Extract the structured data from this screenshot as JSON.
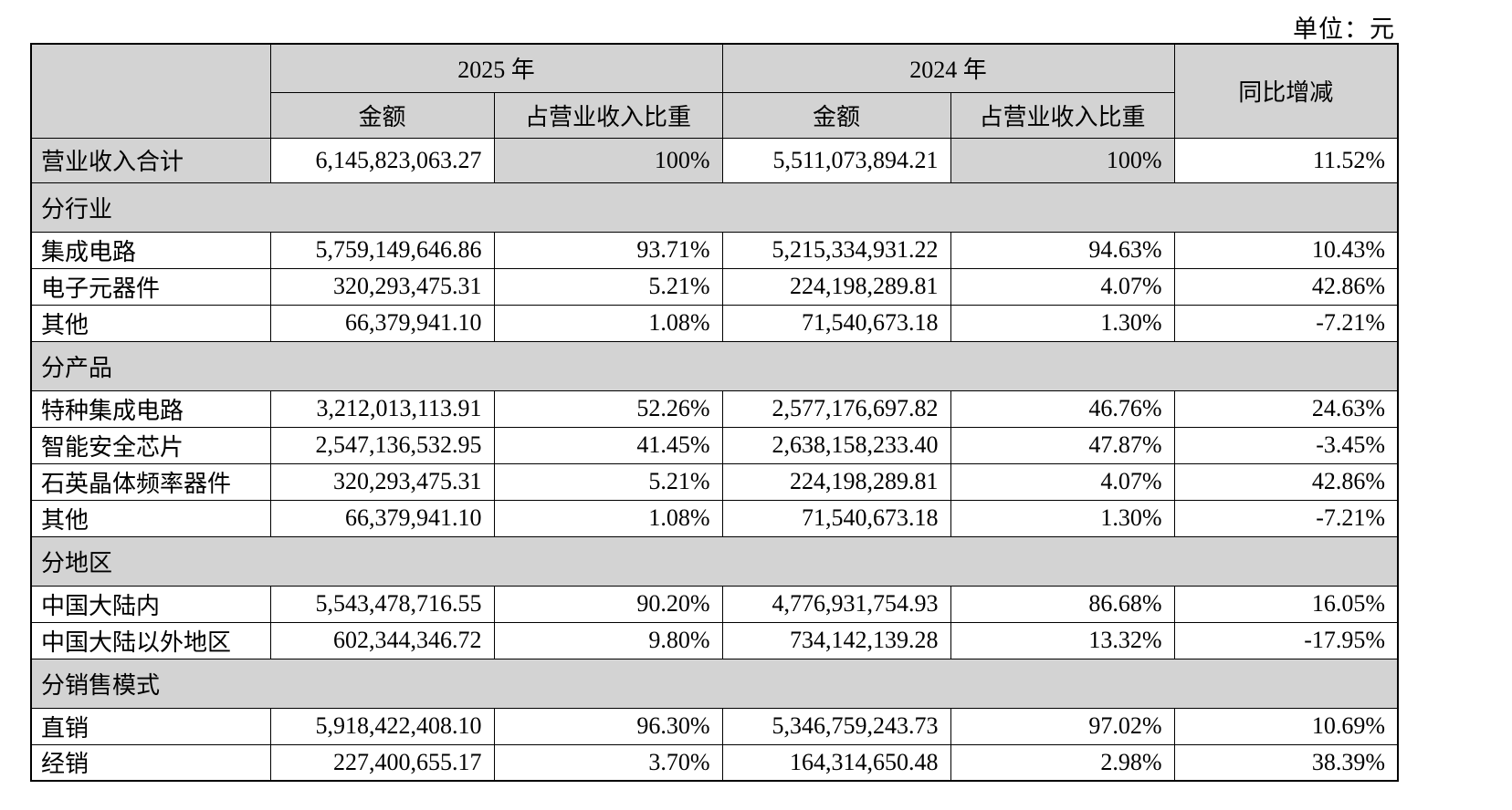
{
  "unit_label": "单位：元",
  "colors": {
    "header_bg": "#d3d3d3",
    "border": "#000000",
    "page_bg": "#ffffff"
  },
  "table": {
    "header": {
      "year_2025": "2025 年",
      "year_2024": "2024 年",
      "amount": "金额",
      "pct": "占营业收入比重",
      "yoy": "同比增减"
    },
    "rows": [
      {
        "type": "total",
        "label": "营业收入合计",
        "y2025_amount": "6,145,823,063.27",
        "y2025_pct": "100%",
        "y2024_amount": "5,511,073,894.21",
        "y2024_pct": "100%",
        "yoy": "11.52%"
      },
      {
        "type": "section",
        "label": "分行业"
      },
      {
        "type": "data",
        "label": "集成电路",
        "y2025_amount": "5,759,149,646.86",
        "y2025_pct": "93.71%",
        "y2024_amount": "5,215,334,931.22",
        "y2024_pct": "94.63%",
        "yoy": "10.43%"
      },
      {
        "type": "data",
        "label": "电子元器件",
        "y2025_amount": "320,293,475.31",
        "y2025_pct": "5.21%",
        "y2024_amount": "224,198,289.81",
        "y2024_pct": "4.07%",
        "yoy": "42.86%"
      },
      {
        "type": "data",
        "label": "其他",
        "y2025_amount": "66,379,941.10",
        "y2025_pct": "1.08%",
        "y2024_amount": "71,540,673.18",
        "y2024_pct": "1.30%",
        "yoy": "-7.21%"
      },
      {
        "type": "section",
        "label": "分产品"
      },
      {
        "type": "data",
        "label": "特种集成电路",
        "y2025_amount": "3,212,013,113.91",
        "y2025_pct": "52.26%",
        "y2024_amount": "2,577,176,697.82",
        "y2024_pct": "46.76%",
        "yoy": "24.63%"
      },
      {
        "type": "data",
        "label": "智能安全芯片",
        "y2025_amount": "2,547,136,532.95",
        "y2025_pct": "41.45%",
        "y2024_amount": "2,638,158,233.40",
        "y2024_pct": "47.87%",
        "yoy": "-3.45%"
      },
      {
        "type": "data",
        "label": "石英晶体频率器件",
        "y2025_amount": "320,293,475.31",
        "y2025_pct": "5.21%",
        "y2024_amount": "224,198,289.81",
        "y2024_pct": "4.07%",
        "yoy": "42.86%"
      },
      {
        "type": "data",
        "label": "其他",
        "y2025_amount": "66,379,941.10",
        "y2025_pct": "1.08%",
        "y2024_amount": "71,540,673.18",
        "y2024_pct": "1.30%",
        "yoy": "-7.21%"
      },
      {
        "type": "section",
        "label": "分地区"
      },
      {
        "type": "data",
        "label": "中国大陆内",
        "y2025_amount": "5,543,478,716.55",
        "y2025_pct": "90.20%",
        "y2024_amount": "4,776,931,754.93",
        "y2024_pct": "86.68%",
        "yoy": "16.05%"
      },
      {
        "type": "data",
        "label": "中国大陆以外地区",
        "y2025_amount": "602,344,346.72",
        "y2025_pct": "9.80%",
        "y2024_amount": "734,142,139.28",
        "y2024_pct": "13.32%",
        "yoy": "-17.95%"
      },
      {
        "type": "section",
        "label": "分销售模式"
      },
      {
        "type": "data",
        "label": "直销",
        "y2025_amount": "5,918,422,408.10",
        "y2025_pct": "96.30%",
        "y2024_amount": "5,346,759,243.73",
        "y2024_pct": "97.02%",
        "yoy": "10.69%"
      },
      {
        "type": "data",
        "label": "经销",
        "y2025_amount": "227,400,655.17",
        "y2025_pct": "3.70%",
        "y2024_amount": "164,314,650.48",
        "y2024_pct": "2.98%",
        "yoy": "38.39%"
      }
    ]
  }
}
